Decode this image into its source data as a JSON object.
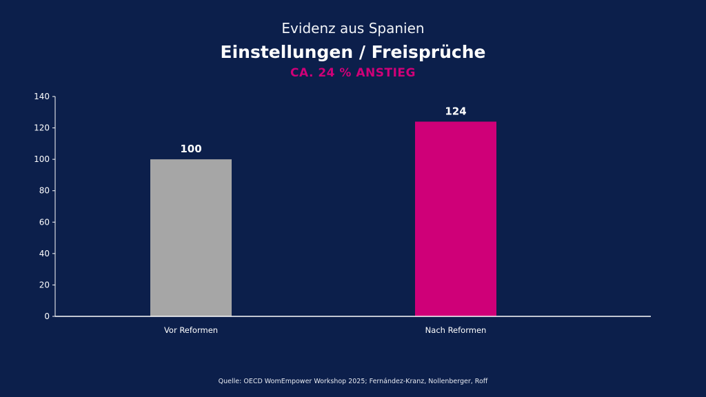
{
  "header": {
    "supertitle": "Evidenz aus Spanien",
    "title": "Einstellungen / Freisprüche",
    "subtitle": "CA. 24 % ANSTIEG"
  },
  "chart_data": {
    "type": "bar",
    "categories": [
      "Vor Reformen",
      "Nach Reformen"
    ],
    "values": [
      100,
      124
    ],
    "value_labels": [
      "100",
      "124"
    ],
    "bar_colors": [
      "#a6a6a6",
      "#cf0078"
    ],
    "title": "Einstellungen / Freisprüche",
    "xlabel": "",
    "ylabel": "",
    "ylim": [
      0,
      140
    ],
    "yticks": [
      0,
      20,
      40,
      60,
      80,
      100,
      120,
      140
    ],
    "grid": false
  },
  "footer": {
    "source": "Quelle: OECD WomEmpower Workshop 2025; Fernández-Kranz, Nollenberger, Roff"
  }
}
